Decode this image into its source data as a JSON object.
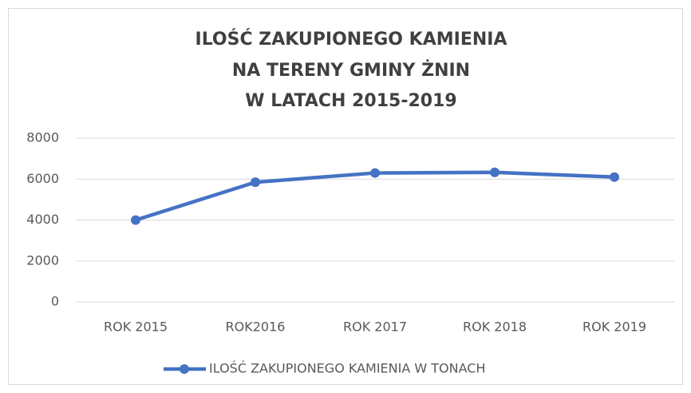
{
  "chart_data": {
    "type": "line",
    "title": [
      "ILOŚĆ ZAKUPIONEGO KAMIENIA",
      "NA TERENY GMINY ŻNIN",
      "W LATACH 2015-2019"
    ],
    "categories": [
      "ROK 2015",
      "ROK2016",
      "ROK 2017",
      "ROK 2018",
      "ROK 2019"
    ],
    "series": [
      {
        "name": "ILOŚĆ ZAKUPIONEGO KAMIENIA W TONACH",
        "color": "#4472c4",
        "values": [
          4000,
          5850,
          6300,
          6330,
          6100
        ]
      }
    ],
    "ylim": [
      0,
      8000
    ],
    "yticks": [
      0,
      2000,
      4000,
      6000,
      8000
    ],
    "grid": true,
    "legend": "bottom"
  }
}
